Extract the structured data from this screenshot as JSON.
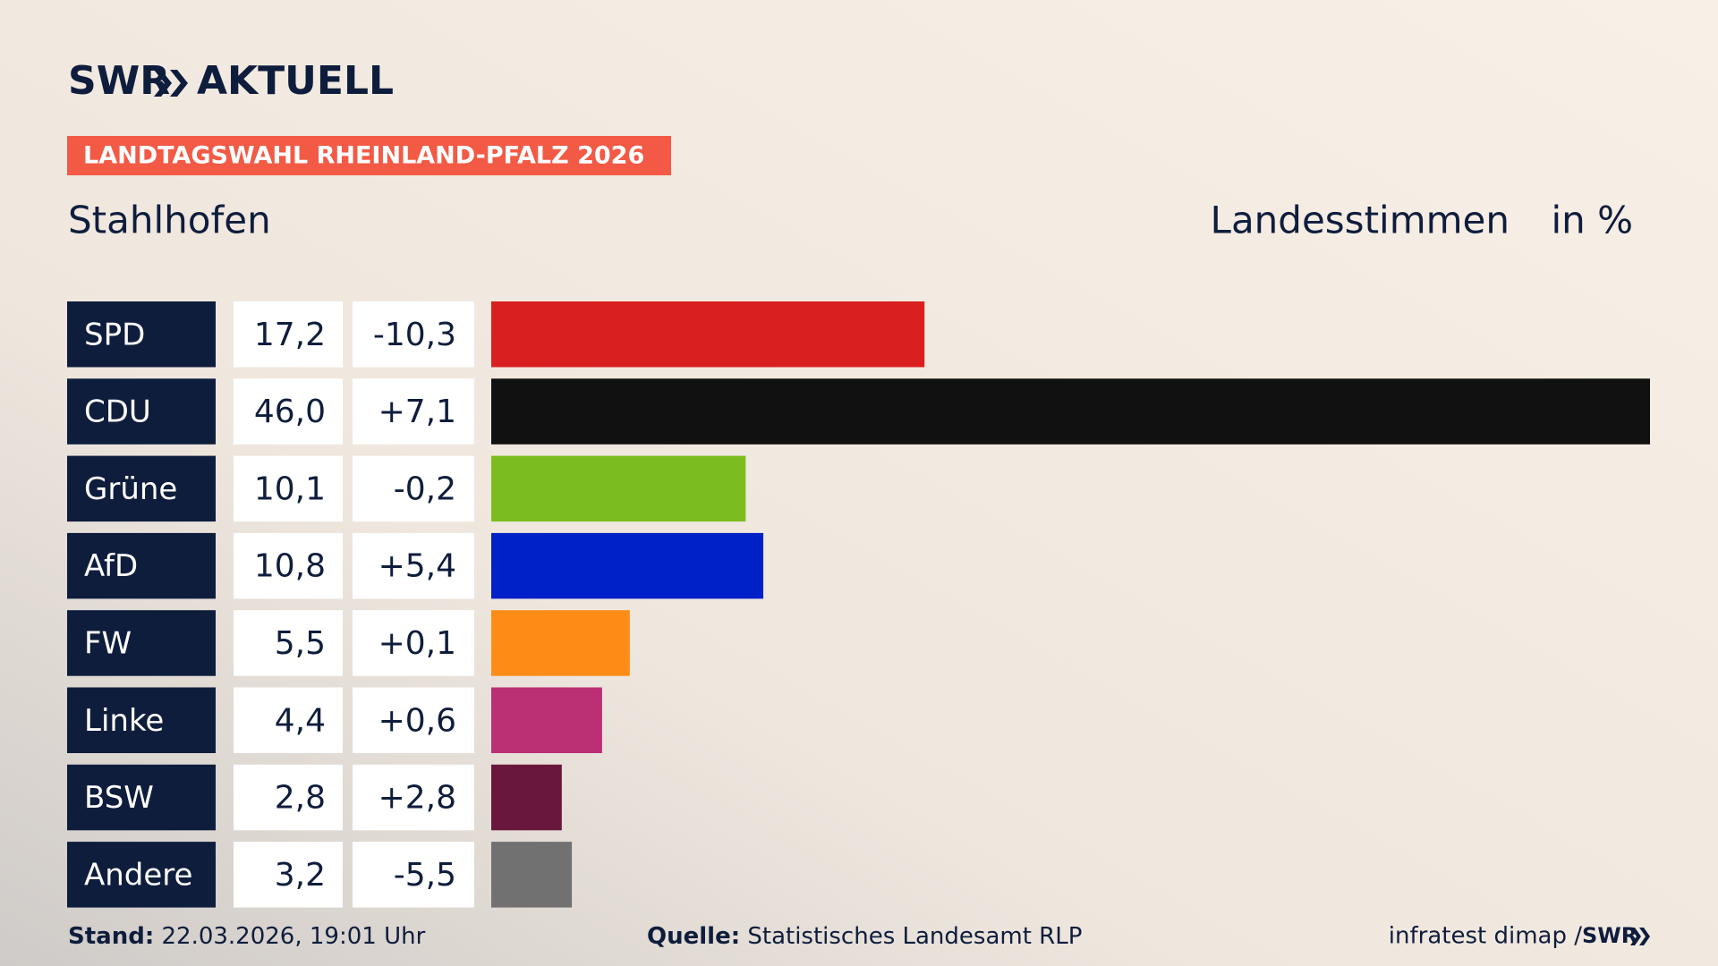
{
  "header": {
    "logo_left": "SWR",
    "logo_right": "AKTUELL",
    "banner": "LANDTAGSWAHL RHEINLAND-PFALZ 2026"
  },
  "chart_data": {
    "type": "bar",
    "title": "Stahlhofen",
    "value_caption": "Landesstimmen",
    "unit_caption": "in %",
    "categories": [
      "SPD",
      "CDU",
      "Grüne",
      "AfD",
      "FW",
      "Linke",
      "BSW",
      "Andere"
    ],
    "values": [
      17.2,
      46.0,
      10.1,
      10.8,
      5.5,
      4.4,
      2.8,
      3.2
    ],
    "value_labels": [
      "17,2",
      "46,0",
      "10,1",
      "10,8",
      "5,5",
      "4,4",
      "2,8",
      "3,2"
    ],
    "changes": [
      -10.3,
      7.1,
      -0.2,
      5.4,
      0.1,
      0.6,
      2.8,
      -5.5
    ],
    "change_labels": [
      "-10,3",
      "+7,1",
      "-0,2",
      "+5,4",
      "+0,1",
      "+0,6",
      "+2,8",
      "-5,5"
    ],
    "colors": [
      "#d91f1f",
      "#111111",
      "#7bbd1e",
      "#0021c8",
      "#ff8c17",
      "#bb2f74",
      "#6a173d",
      "#717171"
    ]
  },
  "footer": {
    "stand_label": "Stand:",
    "stand": "22.03.2026, 19:01 Uhr",
    "source_label": "Quelle:",
    "source": "Statistisches Landesamt RLP",
    "credit": "infratest dimap / ",
    "credit_logo": "SWR"
  }
}
